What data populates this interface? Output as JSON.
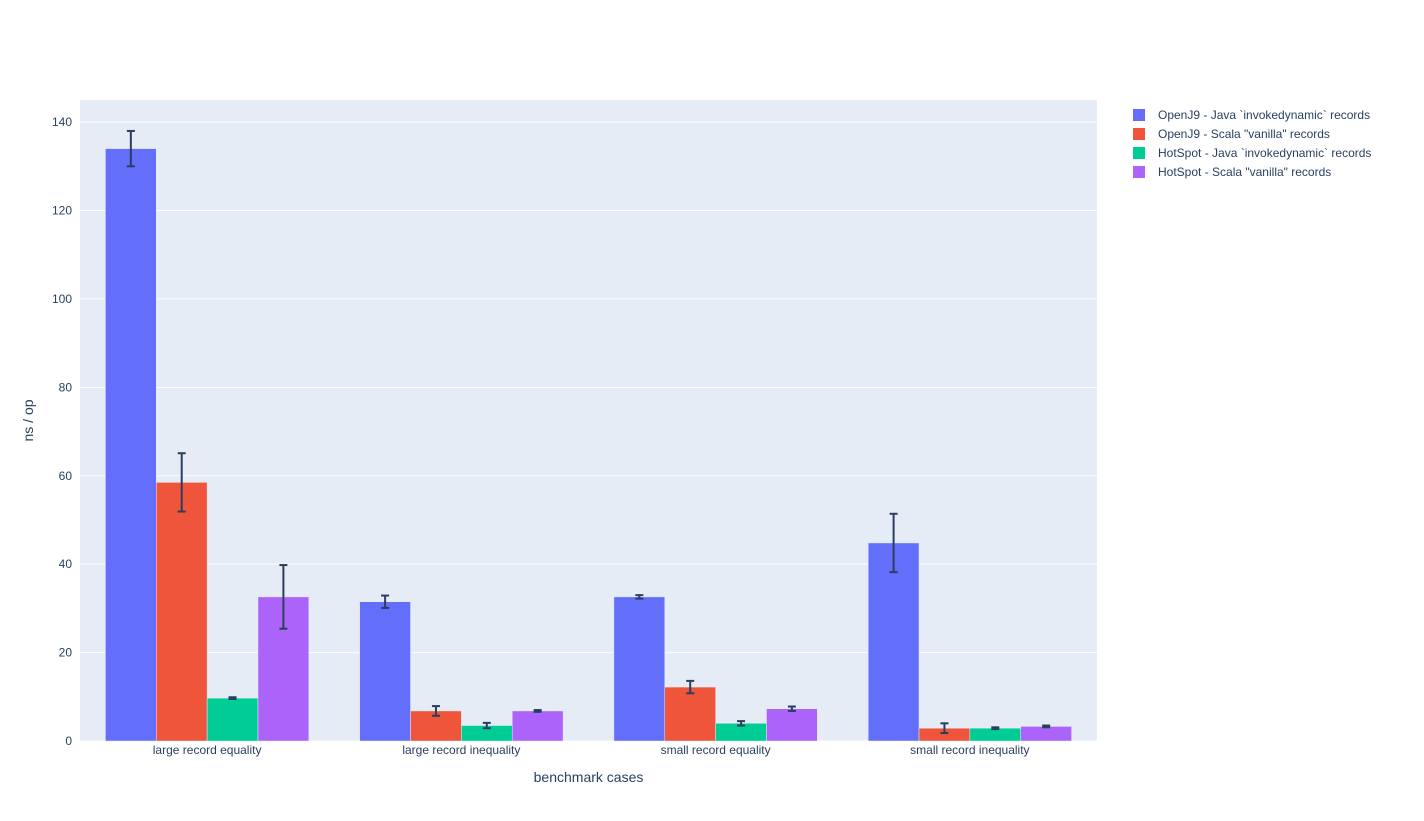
{
  "chart_data": {
    "type": "bar",
    "barmode": "group",
    "title": "",
    "xlabel": "benchmark cases",
    "ylabel": "ns / op",
    "ylim": [
      0,
      145
    ],
    "yticks": [
      0,
      20,
      40,
      60,
      80,
      100,
      120,
      140
    ],
    "grid": true,
    "legend_position": "top-right outside",
    "categories": [
      "large record equality",
      "large record inequality",
      "small record equality",
      "small record inequality"
    ],
    "series": [
      {
        "name": "OpenJ9 - Java `invokedynamic` records",
        "color": "#636efa",
        "values": [
          134,
          31.5,
          32.6,
          44.8
        ],
        "errors": [
          4.0,
          1.4,
          0.4,
          6.6
        ]
      },
      {
        "name": "OpenJ9 - Scala \"vanilla\" records",
        "color": "#ef553b",
        "values": [
          58.5,
          6.8,
          12.2,
          2.9
        ],
        "errors": [
          6.6,
          1.1,
          1.4,
          1.1
        ]
      },
      {
        "name": "HotSpot - Java `invokedynamic` records",
        "color": "#00cc96",
        "values": [
          9.7,
          3.5,
          4.0,
          2.9
        ],
        "errors": [
          0.2,
          0.6,
          0.5,
          0.2
        ]
      },
      {
        "name": "HotSpot - Scala \"vanilla\" records",
        "color": "#ab63fa",
        "values": [
          32.6,
          6.8,
          7.3,
          3.3
        ],
        "errors": [
          7.2,
          0.2,
          0.5,
          0.2
        ]
      }
    ]
  }
}
